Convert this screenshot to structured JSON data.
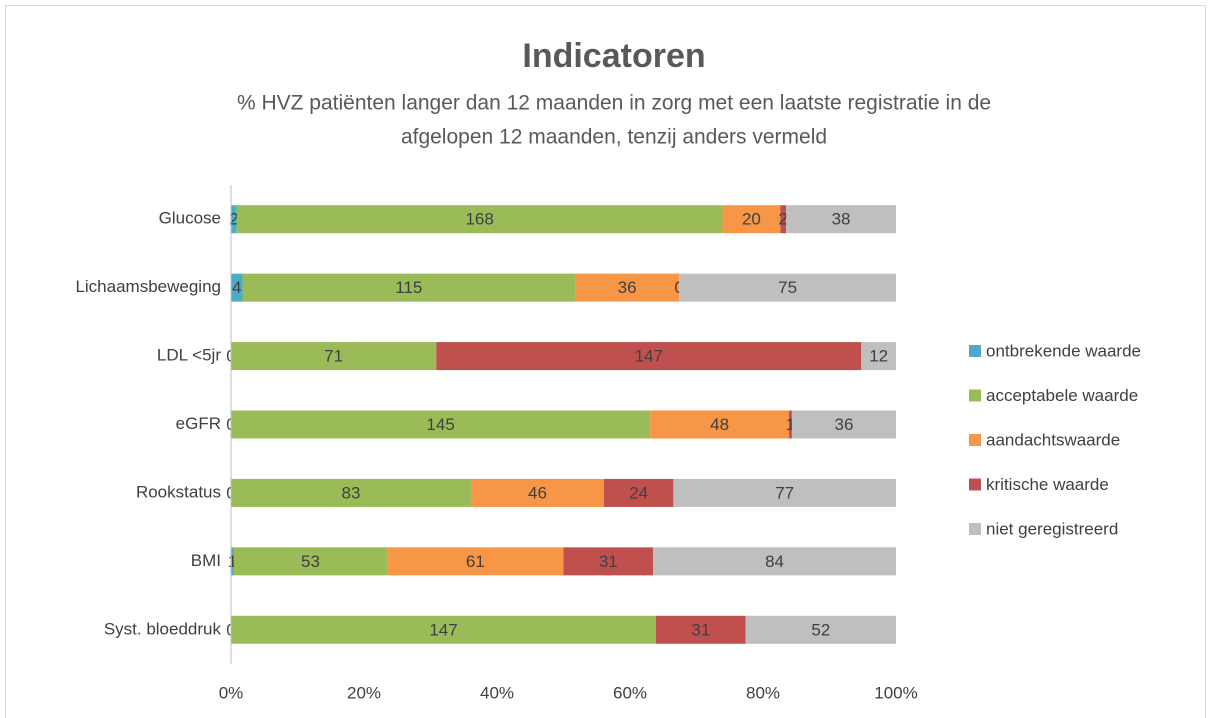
{
  "chart_data": {
    "type": "stacked-bar-100",
    "title": "Indicatoren",
    "subtitle": [
      "% HVZ patiënten langer dan 12 maanden in zorg met een laatste registratie in de",
      "afgelopen 12 maanden, tenzij anders vermeld"
    ],
    "categories": [
      "Glucose",
      "Lichaamsbeweging",
      "LDL <5jr",
      "eGFR",
      "Rookstatus",
      "BMI",
      "Syst. bloeddruk"
    ],
    "series": [
      {
        "name": "ontbrekende waarde",
        "color": "#4bacc6",
        "values": [
          2,
          4,
          0,
          0,
          0,
          1,
          0
        ]
      },
      {
        "name": "acceptabele waarde",
        "color": "#9bbb59",
        "values": [
          168,
          115,
          71,
          145,
          83,
          53,
          147
        ]
      },
      {
        "name": "aandachtswaarde",
        "color": "#f79646",
        "values": [
          20,
          36,
          null,
          48,
          46,
          61,
          null
        ]
      },
      {
        "name": "kritische waarde",
        "color": "#c0504d",
        "values": [
          2,
          0,
          147,
          1,
          24,
          31,
          31
        ]
      },
      {
        "name": "niet geregistreerd",
        "color": "#bfbfbf",
        "values": [
          38,
          75,
          12,
          36,
          77,
          84,
          52
        ]
      }
    ],
    "xlim": [
      0,
      100
    ],
    "xticks": [
      {
        "value": 0,
        "label": "0%"
      },
      {
        "value": 20,
        "label": "20%"
      },
      {
        "value": 40,
        "label": "40%"
      },
      {
        "value": 60,
        "label": "60%"
      },
      {
        "value": 80,
        "label": "80%"
      },
      {
        "value": 100,
        "label": "100%"
      }
    ],
    "legend": "right"
  }
}
